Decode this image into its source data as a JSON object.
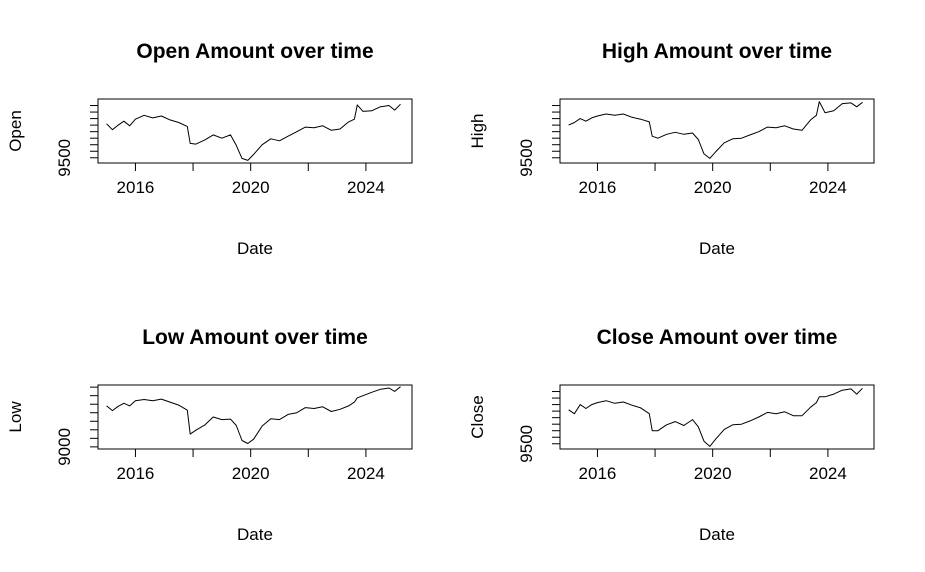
{
  "chart_data": [
    {
      "type": "line",
      "title": "Open Amount over time",
      "xlabel": "Date",
      "ylabel": "Open",
      "xlim": [
        2014.7,
        2025.6
      ],
      "xticks": [
        2016,
        2018,
        2020,
        2022,
        2024
      ],
      "xtick_labels": [
        "2016",
        "2020",
        "2024"
      ],
      "ylim": [
        9420,
        10400
      ],
      "yticks": [
        9500,
        9600,
        9700,
        9800,
        9900,
        10000,
        10100,
        10200,
        10300
      ],
      "ytick_labels": [
        "9500"
      ],
      "x": [
        2015.0,
        2015.2,
        2015.4,
        2015.6,
        2015.8,
        2016.0,
        2016.3,
        2016.6,
        2016.9,
        2017.2,
        2017.5,
        2017.8,
        2017.9,
        2018.1,
        2018.4,
        2018.7,
        2019.0,
        2019.3,
        2019.5,
        2019.7,
        2019.9,
        2020.1,
        2020.4,
        2020.7,
        2021.0,
        2021.3,
        2021.6,
        2021.9,
        2022.2,
        2022.5,
        2022.8,
        2023.1,
        2023.4,
        2023.6,
        2023.7,
        2023.9,
        2024.2,
        2024.5,
        2024.8,
        2025.0,
        2025.2
      ],
      "y": [
        10020,
        9930,
        10000,
        10060,
        9990,
        10090,
        10150,
        10110,
        10140,
        10080,
        10040,
        9980,
        9720,
        9710,
        9770,
        9850,
        9800,
        9850,
        9690,
        9490,
        9460,
        9550,
        9700,
        9790,
        9760,
        9830,
        9900,
        9970,
        9960,
        9990,
        9920,
        9940,
        10050,
        10090,
        10310,
        10210,
        10220,
        10280,
        10300,
        10230,
        10320
      ]
    },
    {
      "type": "line",
      "title": "High Amount over time",
      "xlabel": "Date",
      "ylabel": "High",
      "xlim": [
        2014.7,
        2025.6
      ],
      "xticks": [
        2016,
        2018,
        2020,
        2022,
        2024
      ],
      "xtick_labels": [
        "2016",
        "2020",
        "2024"
      ],
      "ylim": [
        9420,
        10400
      ],
      "yticks": [
        9500,
        9600,
        9700,
        9800,
        9900,
        10000,
        10100,
        10200,
        10300
      ],
      "ytick_labels": [
        "9500"
      ],
      "x": [
        2015.0,
        2015.2,
        2015.4,
        2015.6,
        2015.8,
        2016.0,
        2016.3,
        2016.6,
        2016.9,
        2017.2,
        2017.5,
        2017.8,
        2017.9,
        2018.1,
        2018.4,
        2018.7,
        2019.0,
        2019.3,
        2019.5,
        2019.7,
        2019.9,
        2020.1,
        2020.4,
        2020.7,
        2021.0,
        2021.3,
        2021.6,
        2021.9,
        2022.2,
        2022.5,
        2022.8,
        2023.1,
        2023.4,
        2023.6,
        2023.7,
        2023.9,
        2024.2,
        2024.5,
        2024.8,
        2025.0,
        2025.2
      ],
      "y": [
        10000,
        10040,
        10100,
        10060,
        10110,
        10140,
        10170,
        10150,
        10170,
        10120,
        10090,
        10050,
        9830,
        9800,
        9860,
        9890,
        9860,
        9880,
        9780,
        9560,
        9490,
        9590,
        9730,
        9790,
        9800,
        9850,
        9900,
        9970,
        9960,
        9990,
        9940,
        9920,
        10080,
        10150,
        10360,
        10190,
        10220,
        10330,
        10340,
        10280,
        10350
      ]
    },
    {
      "type": "line",
      "title": "Low Amount over time",
      "xlabel": "Date",
      "ylabel": "Low",
      "xlim": [
        2014.7,
        2025.6
      ],
      "xticks": [
        2016,
        2018,
        2020,
        2022,
        2024
      ],
      "xtick_labels": [
        "2016",
        "2020",
        "2024"
      ],
      "ylim": [
        8950,
        10450
      ],
      "yticks": [
        9000,
        9200,
        9400,
        9600,
        9800,
        10000,
        10200,
        10400
      ],
      "ytick_labels": [
        "9000"
      ],
      "x": [
        2015.0,
        2015.2,
        2015.4,
        2015.6,
        2015.8,
        2016.0,
        2016.3,
        2016.6,
        2016.9,
        2017.2,
        2017.5,
        2017.8,
        2017.9,
        2018.1,
        2018.4,
        2018.7,
        2019.0,
        2019.3,
        2019.5,
        2019.7,
        2019.9,
        2020.1,
        2020.4,
        2020.7,
        2021.0,
        2021.3,
        2021.6,
        2021.9,
        2022.2,
        2022.5,
        2022.8,
        2023.1,
        2023.4,
        2023.6,
        2023.7,
        2023.9,
        2024.2,
        2024.5,
        2024.8,
        2025.0,
        2025.2
      ],
      "y": [
        9960,
        9850,
        9950,
        10020,
        9960,
        10080,
        10110,
        10080,
        10120,
        10050,
        9980,
        9860,
        9300,
        9390,
        9510,
        9700,
        9640,
        9650,
        9500,
        9150,
        9080,
        9180,
        9490,
        9660,
        9640,
        9760,
        9800,
        9920,
        9900,
        9940,
        9830,
        9880,
        9960,
        10050,
        10150,
        10200,
        10280,
        10350,
        10380,
        10300,
        10410
      ]
    },
    {
      "type": "line",
      "title": "Close Amount over time",
      "xlabel": "Date",
      "ylabel": "Close",
      "xlim": [
        2014.7,
        2025.6
      ],
      "xticks": [
        2016,
        2018,
        2020,
        2022,
        2024
      ],
      "xtick_labels": [
        "2016",
        "2020",
        "2024"
      ],
      "ylim": [
        9420,
        10400
      ],
      "yticks": [
        9500,
        9600,
        9700,
        9800,
        9900,
        10000,
        10100,
        10200,
        10300
      ],
      "ytick_labels": [
        "9500"
      ],
      "x": [
        2015.0,
        2015.2,
        2015.4,
        2015.6,
        2015.8,
        2016.0,
        2016.3,
        2016.6,
        2016.9,
        2017.2,
        2017.5,
        2017.8,
        2017.9,
        2018.1,
        2018.4,
        2018.7,
        2019.0,
        2019.3,
        2019.5,
        2019.7,
        2019.9,
        2020.1,
        2020.4,
        2020.7,
        2021.0,
        2021.3,
        2021.6,
        2021.9,
        2022.2,
        2022.5,
        2022.8,
        2023.1,
        2023.4,
        2023.6,
        2023.7,
        2023.9,
        2024.2,
        2024.5,
        2024.8,
        2025.0,
        2025.2
      ],
      "y": [
        10020,
        9960,
        10100,
        10040,
        10100,
        10130,
        10160,
        10120,
        10140,
        10090,
        10050,
        9960,
        9700,
        9700,
        9790,
        9840,
        9780,
        9870,
        9760,
        9540,
        9460,
        9570,
        9720,
        9790,
        9800,
        9850,
        9910,
        9980,
        9960,
        9990,
        9930,
        9930,
        10060,
        10130,
        10220,
        10220,
        10260,
        10320,
        10340,
        10260,
        10350
      ]
    }
  ]
}
